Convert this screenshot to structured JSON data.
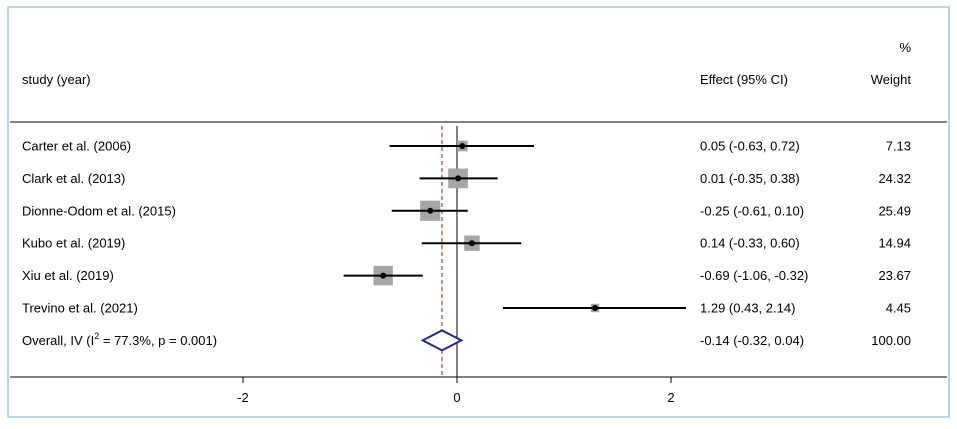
{
  "chart_data": {
    "type": "forest",
    "header": {
      "study_label": "study (year)",
      "effect_label": "Effect (95% CI)",
      "weight_pct": "%",
      "weight_label": "Weight"
    },
    "studies": [
      {
        "label": "Carter et al. (2006)",
        "effect": 0.05,
        "lower": -0.63,
        "upper": 0.72,
        "effect_text": "0.05 (-0.63, 0.72)",
        "weight": 7.13,
        "weight_text": "7.13"
      },
      {
        "label": "Clark et al. (2013)",
        "effect": 0.01,
        "lower": -0.35,
        "upper": 0.38,
        "effect_text": "0.01 (-0.35, 0.38)",
        "weight": 24.32,
        "weight_text": "24.32"
      },
      {
        "label": "Dionne-Odom et al. (2015)",
        "effect": -0.25,
        "lower": -0.61,
        "upper": 0.1,
        "effect_text": "-0.25 (-0.61, 0.10)",
        "weight": 25.49,
        "weight_text": "25.49"
      },
      {
        "label": "Kubo et al. (2019)",
        "effect": 0.14,
        "lower": -0.33,
        "upper": 0.6,
        "effect_text": "0.14 (-0.33, 0.60)",
        "weight": 14.94,
        "weight_text": "14.94"
      },
      {
        "label": "Xiu et al. (2019)",
        "effect": -0.69,
        "lower": -1.06,
        "upper": -0.32,
        "effect_text": "-0.69 (-1.06, -0.32)",
        "weight": 23.67,
        "weight_text": "23.67"
      },
      {
        "label": "Trevino et al. (2021)",
        "effect": 1.29,
        "lower": 0.43,
        "upper": 2.14,
        "effect_text": "1.29 (0.43, 2.14)",
        "weight": 4.45,
        "weight_text": "4.45"
      }
    ],
    "overall": {
      "label_prefix": "Overall, IV (I",
      "label_sup": "2",
      "label_suffix": " = 77.3%, p = 0.001)",
      "effect": -0.14,
      "lower": -0.32,
      "upper": 0.04,
      "effect_text": "-0.14 (-0.32, 0.04)",
      "weight_text": "100.00"
    },
    "null_line": 0,
    "xlim": [
      -3.8,
      3.8
    ],
    "xticks": [
      -2,
      0,
      2
    ],
    "xtick_labels": [
      "-2",
      "0",
      "2"
    ],
    "colors": {
      "ci_line": "#000000",
      "weight_box": "#a6a6a6",
      "overall_diamond": "#1f2a80",
      "overall_line": "#8b1a1a",
      "frame": "#a6c8e0"
    }
  }
}
